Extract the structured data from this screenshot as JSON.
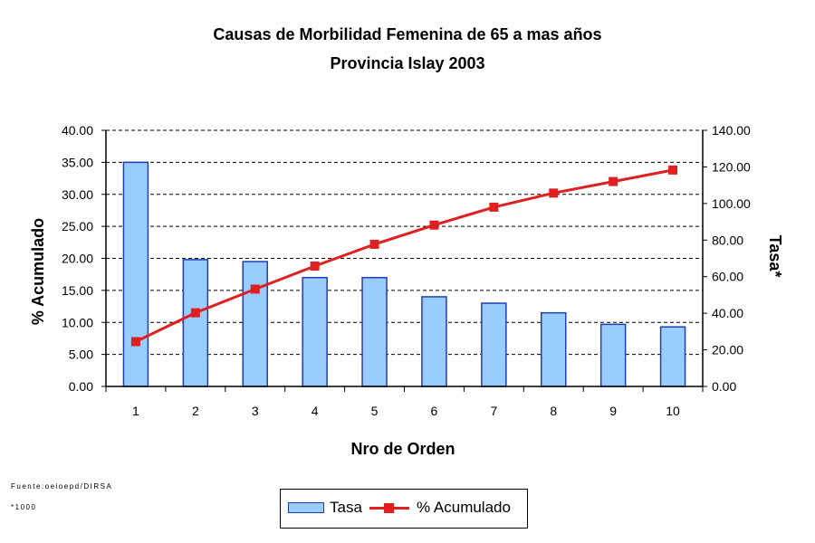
{
  "chart_data": {
    "type": "bar",
    "title": "Causas de Morbilidad Femenina de 65 a mas años",
    "subtitle": "Provincia Islay 2003",
    "xlabel": "Nro de Orden",
    "ylabel_left": "% Acumulado",
    "ylabel_right": "Tasa*",
    "categories": [
      "1",
      "2",
      "3",
      "4",
      "5",
      "6",
      "7",
      "8",
      "9",
      "10"
    ],
    "left_axis": {
      "min": 0,
      "max": 40,
      "step": 5,
      "ticks": [
        "0.00",
        "5.00",
        "10.00",
        "15.00",
        "20.00",
        "25.00",
        "30.00",
        "35.00",
        "40.00"
      ]
    },
    "right_axis": {
      "min": 0,
      "max": 140,
      "step": 20,
      "ticks": [
        "0.00",
        "20.00",
        "40.00",
        "60.00",
        "80.00",
        "100.00",
        "120.00",
        "140.00"
      ]
    },
    "grid": "horizontal-dashed",
    "legend_position": "bottom-center",
    "series": [
      {
        "name": "Tasa",
        "type": "bar",
        "axis": "left",
        "color": "#99ccff",
        "stroke": "#1f3fae",
        "values": [
          35.0,
          19.8,
          19.5,
          17.0,
          17.0,
          14.0,
          13.0,
          11.5,
          9.7,
          9.3
        ]
      },
      {
        "name": "% Acumulado",
        "type": "line",
        "axis": "left",
        "color": "#e02020",
        "values": [
          7.0,
          11.5,
          15.2,
          18.8,
          22.2,
          25.2,
          28.0,
          30.2,
          32.0,
          33.8
        ]
      }
    ]
  },
  "notes": {
    "source": "Fuente:oeioepd/DIRSA",
    "footnote": "*1000"
  }
}
